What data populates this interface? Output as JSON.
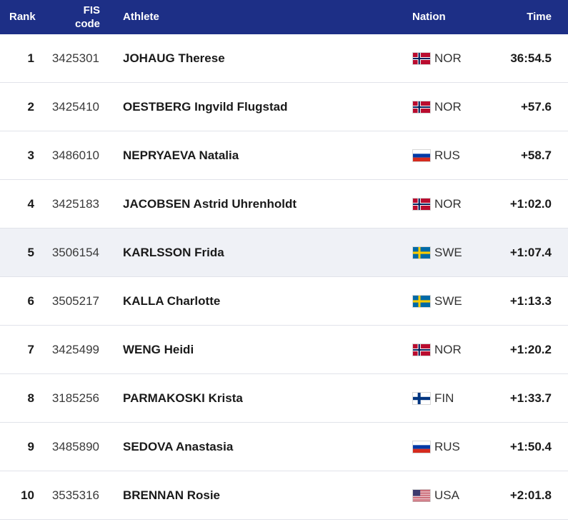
{
  "header": {
    "rank": "Rank",
    "fis_line1": "FIS",
    "fis_line2": "code",
    "athlete": "Athlete",
    "nation": "Nation",
    "time": "Time"
  },
  "rows": [
    {
      "rank": "1",
      "fis": "3425301",
      "athlete": "JOHAUG Therese",
      "nation": "NOR",
      "flag": "norway-flag-icon",
      "time": "36:54.5"
    },
    {
      "rank": "2",
      "fis": "3425410",
      "athlete": "OESTBERG Ingvild Flugstad",
      "nation": "NOR",
      "flag": "norway-flag-icon",
      "time": "+57.6"
    },
    {
      "rank": "3",
      "fis": "3486010",
      "athlete": "NEPRYAEVA Natalia",
      "nation": "RUS",
      "flag": "russia-flag-icon",
      "time": "+58.7"
    },
    {
      "rank": "4",
      "fis": "3425183",
      "athlete": "JACOBSEN Astrid Uhrenholdt",
      "nation": "NOR",
      "flag": "norway-flag-icon",
      "time": "+1:02.0"
    },
    {
      "rank": "5",
      "fis": "3506154",
      "athlete": "KARLSSON Frida",
      "nation": "SWE",
      "flag": "sweden-flag-icon",
      "time": "+1:07.4"
    },
    {
      "rank": "6",
      "fis": "3505217",
      "athlete": "KALLA Charlotte",
      "nation": "SWE",
      "flag": "sweden-flag-icon",
      "time": "+1:13.3"
    },
    {
      "rank": "7",
      "fis": "3425499",
      "athlete": "WENG Heidi",
      "nation": "NOR",
      "flag": "norway-flag-icon",
      "time": "+1:20.2"
    },
    {
      "rank": "8",
      "fis": "3185256",
      "athlete": "PARMAKOSKI Krista",
      "nation": "FIN",
      "flag": "finland-flag-icon",
      "time": "+1:33.7"
    },
    {
      "rank": "9",
      "fis": "3485890",
      "athlete": "SEDOVA Anastasia",
      "nation": "RUS",
      "flag": "russia-flag-icon",
      "time": "+1:50.4"
    },
    {
      "rank": "10",
      "fis": "3535316",
      "athlete": "BRENNAN Rosie",
      "nation": "USA",
      "flag": "usa-flag-icon",
      "time": "+2:01.8"
    }
  ],
  "highlighted_row": 4,
  "colors": {
    "header_bg": "#1d2f86",
    "header_text": "#ffffff",
    "highlight_bg": "#eff1f6",
    "divider": "#e1e3ea"
  }
}
